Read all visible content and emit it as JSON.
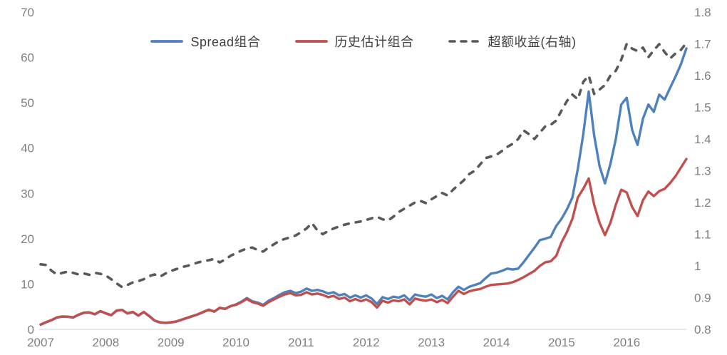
{
  "chart_data": {
    "type": "line",
    "title": "",
    "xlabel": "",
    "ylabel_left": "",
    "ylabel_right": "",
    "x_tick_labels": [
      "2007",
      "2008",
      "2009",
      "2010",
      "2011",
      "2012",
      "2013",
      "2014",
      "2015",
      "2016"
    ],
    "points_per_year": 12,
    "left_axis": {
      "min": 0,
      "max": 70,
      "tick_labels": [
        "0",
        "10",
        "20",
        "30",
        "40",
        "50",
        "60",
        "70"
      ]
    },
    "right_axis": {
      "min": 0.8,
      "max": 1.8,
      "tick_labels": [
        "0.8",
        "0.9",
        "1",
        "1.1",
        "1.2",
        "1.3",
        "1.4",
        "1.5",
        "1.6",
        "1.7",
        "1.8"
      ]
    },
    "layout": {
      "grid": false,
      "legend_position": "top",
      "axis_line_color": "#d9d9d9",
      "tick_color": "#7f7f7f"
    },
    "legend": [
      {
        "label": "Spread组合",
        "color": "#4f81bd",
        "dashed": false
      },
      {
        "label": "历史估计组合",
        "color": "#c0504d",
        "dashed": false
      },
      {
        "label": "超额收益(右轴)",
        "color": "#595959",
        "dashed": true
      }
    ],
    "series": [
      {
        "name": "超额收益(右轴)",
        "axis": "right",
        "color": "#595959",
        "style": "dashed",
        "width": 3.6,
        "values": [
          1.005,
          1.003,
          0.985,
          0.973,
          0.978,
          0.982,
          0.978,
          0.973,
          0.976,
          0.972,
          0.978,
          0.975,
          0.97,
          0.958,
          0.945,
          0.933,
          0.94,
          0.948,
          0.952,
          0.958,
          0.968,
          0.973,
          0.966,
          0.976,
          0.984,
          0.99,
          0.996,
          1.0,
          1.005,
          1.011,
          1.015,
          1.018,
          1.022,
          1.011,
          1.02,
          1.032,
          1.04,
          1.048,
          1.055,
          1.058,
          1.05,
          1.045,
          1.058,
          1.068,
          1.079,
          1.085,
          1.09,
          1.096,
          1.106,
          1.118,
          1.135,
          1.112,
          1.1,
          1.11,
          1.118,
          1.124,
          1.13,
          1.134,
          1.137,
          1.14,
          1.145,
          1.15,
          1.155,
          1.147,
          1.143,
          1.155,
          1.17,
          1.18,
          1.19,
          1.2,
          1.205,
          1.198,
          1.21,
          1.22,
          1.23,
          1.222,
          1.24,
          1.255,
          1.27,
          1.29,
          1.3,
          1.32,
          1.34,
          1.345,
          1.35,
          1.362,
          1.375,
          1.385,
          1.4,
          1.427,
          1.415,
          1.4,
          1.42,
          1.44,
          1.445,
          1.458,
          1.49,
          1.52,
          1.54,
          1.525,
          1.58,
          1.6,
          1.542,
          1.556,
          1.57,
          1.6,
          1.615,
          1.65,
          1.7,
          1.685,
          1.677,
          1.688,
          1.658,
          1.68,
          1.699,
          1.674,
          1.654,
          1.67,
          1.681,
          1.703
        ]
      },
      {
        "name": "Spread组合",
        "axis": "left",
        "color": "#4f81bd",
        "style": "solid",
        "width": 3.4,
        "values": [
          1.0,
          1.55,
          2.0,
          2.6,
          2.8,
          2.75,
          2.6,
          3.2,
          3.65,
          3.7,
          3.3,
          4.0,
          3.5,
          3.1,
          4.1,
          4.3,
          3.5,
          3.8,
          3.0,
          3.8,
          2.9,
          1.9,
          1.5,
          1.4,
          1.5,
          1.7,
          2.1,
          2.5,
          2.9,
          3.3,
          3.8,
          4.3,
          3.9,
          4.7,
          4.5,
          5.1,
          5.5,
          6.1,
          6.9,
          6.2,
          5.9,
          5.4,
          6.3,
          6.9,
          7.6,
          8.2,
          8.5,
          8.0,
          8.3,
          9.0,
          8.5,
          8.7,
          8.4,
          7.9,
          8.2,
          7.5,
          7.8,
          7.0,
          7.5,
          7.0,
          7.5,
          6.8,
          5.6,
          7.1,
          6.7,
          7.2,
          7.0,
          7.5,
          6.4,
          7.7,
          7.4,
          7.2,
          7.7,
          6.9,
          7.4,
          6.6,
          8.2,
          9.4,
          8.7,
          9.4,
          9.8,
          10.2,
          11.3,
          12.3,
          12.5,
          12.9,
          13.4,
          13.2,
          13.4,
          14.8,
          16.4,
          18.0,
          19.7,
          20.0,
          20.4,
          22.8,
          24.4,
          26.5,
          29.1,
          35.4,
          43.0,
          52.5,
          42.8,
          36.0,
          32.2,
          36.5,
          42.0,
          49.6,
          51.1,
          44.0,
          40.7,
          46.5,
          49.6,
          48.0,
          51.8,
          50.7,
          53.3,
          55.8,
          58.5,
          62.0
        ]
      },
      {
        "name": "历史估计组合",
        "axis": "left",
        "color": "#c0504d",
        "style": "solid",
        "width": 3.4,
        "values": [
          1.05,
          1.6,
          2.05,
          2.65,
          2.85,
          2.8,
          2.65,
          3.25,
          3.7,
          3.75,
          3.35,
          4.05,
          3.55,
          3.15,
          4.15,
          4.3,
          3.55,
          3.85,
          3.05,
          3.85,
          2.95,
          1.95,
          1.55,
          1.45,
          1.55,
          1.75,
          2.15,
          2.55,
          2.95,
          3.35,
          3.85,
          4.35,
          3.95,
          4.75,
          4.55,
          5.15,
          5.4,
          6.0,
          6.7,
          6.0,
          5.7,
          5.2,
          6.0,
          6.6,
          7.2,
          7.7,
          8.0,
          7.5,
          7.6,
          8.2,
          7.7,
          7.9,
          7.6,
          7.1,
          7.4,
          6.7,
          7.0,
          6.2,
          6.7,
          6.2,
          6.6,
          6.0,
          4.8,
          6.3,
          5.9,
          6.4,
          6.2,
          6.6,
          5.5,
          6.8,
          6.5,
          6.3,
          6.6,
          6.0,
          6.5,
          5.8,
          7.2,
          8.5,
          7.8,
          8.4,
          8.7,
          8.9,
          9.4,
          9.8,
          9.9,
          10.0,
          10.1,
          10.4,
          10.9,
          11.5,
          12.2,
          12.9,
          14.0,
          14.8,
          15.0,
          16.2,
          19.2,
          21.5,
          24.4,
          29.1,
          31.0,
          33.3,
          27.5,
          23.5,
          20.8,
          23.5,
          27.5,
          30.8,
          30.2,
          27.0,
          25.0,
          28.5,
          30.4,
          29.4,
          30.5,
          31.0,
          32.3,
          33.8,
          35.7,
          37.6
        ]
      }
    ]
  }
}
